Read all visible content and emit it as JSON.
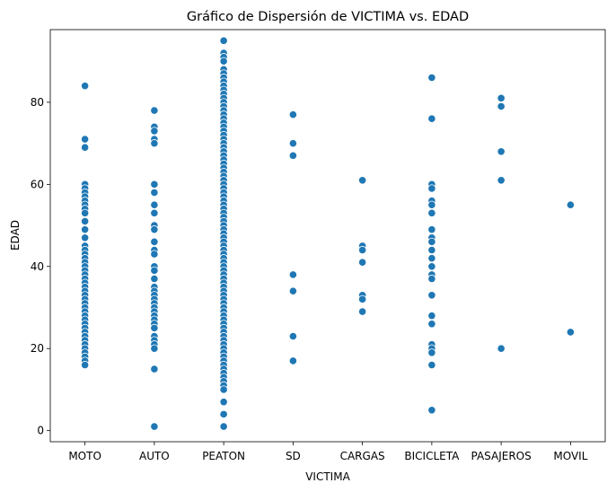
{
  "chart_data": {
    "type": "scatter",
    "title": "Gráfico de Dispersión de VICTIMA vs. EDAD",
    "xlabel": "VICTIMA",
    "ylabel": "EDAD",
    "categories": [
      "MOTO",
      "AUTO",
      "PEATON",
      "SD",
      "CARGAS",
      "BICICLETA",
      "PASAJEROS",
      "MOVIL"
    ],
    "ylim": [
      -2.7,
      97.7
    ],
    "yticks": [
      0,
      20,
      40,
      60,
      80
    ],
    "grid": false,
    "marker_color": "#1f77b4",
    "marker_edge": "#ffffff",
    "points": {
      "MOTO": [
        84,
        71,
        69,
        60,
        59,
        58,
        57,
        56,
        55,
        54,
        53,
        51,
        49,
        47,
        45,
        44,
        43,
        42,
        41,
        40,
        39,
        38,
        37,
        36,
        35,
        34,
        33,
        32,
        31,
        30,
        29,
        28,
        27,
        26,
        25,
        24,
        23,
        22,
        21,
        20,
        19,
        18,
        17,
        16
      ],
      "AUTO": [
        78,
        74,
        73,
        71,
        70,
        60,
        58,
        55,
        53,
        50,
        49,
        46,
        44,
        43,
        40,
        39,
        37,
        35,
        34,
        33,
        32,
        31,
        30,
        29,
        28,
        27,
        26,
        25,
        23,
        22,
        21,
        20,
        15,
        1
      ],
      "PEATON": [
        95,
        92,
        91,
        90,
        88,
        87,
        86,
        85,
        84,
        83,
        82,
        81,
        80,
        79,
        78,
        77,
        76,
        75,
        74,
        73,
        72,
        71,
        70,
        69,
        68,
        67,
        66,
        65,
        64,
        63,
        62,
        61,
        60,
        59,
        58,
        57,
        56,
        55,
        54,
        53,
        52,
        51,
        50,
        49,
        48,
        47,
        46,
        45,
        44,
        43,
        42,
        41,
        40,
        39,
        38,
        37,
        36,
        35,
        34,
        33,
        32,
        31,
        30,
        29,
        28,
        27,
        26,
        25,
        24,
        23,
        22,
        21,
        20,
        19,
        18,
        17,
        16,
        15,
        14,
        13,
        12,
        11,
        10,
        7,
        4,
        1
      ],
      "SD": [
        77,
        70,
        67,
        38,
        34,
        23,
        17
      ],
      "CARGAS": [
        61,
        45,
        44,
        41,
        33,
        32,
        29
      ],
      "BICICLETA": [
        86,
        76,
        60,
        59,
        56,
        55,
        53,
        49,
        47,
        46,
        44,
        42,
        40,
        38,
        37,
        33,
        28,
        26,
        21,
        20,
        19,
        16,
        5
      ],
      "PASAJEROS": [
        81,
        79,
        68,
        61,
        20
      ],
      "MOVIL": [
        55,
        24
      ]
    }
  }
}
